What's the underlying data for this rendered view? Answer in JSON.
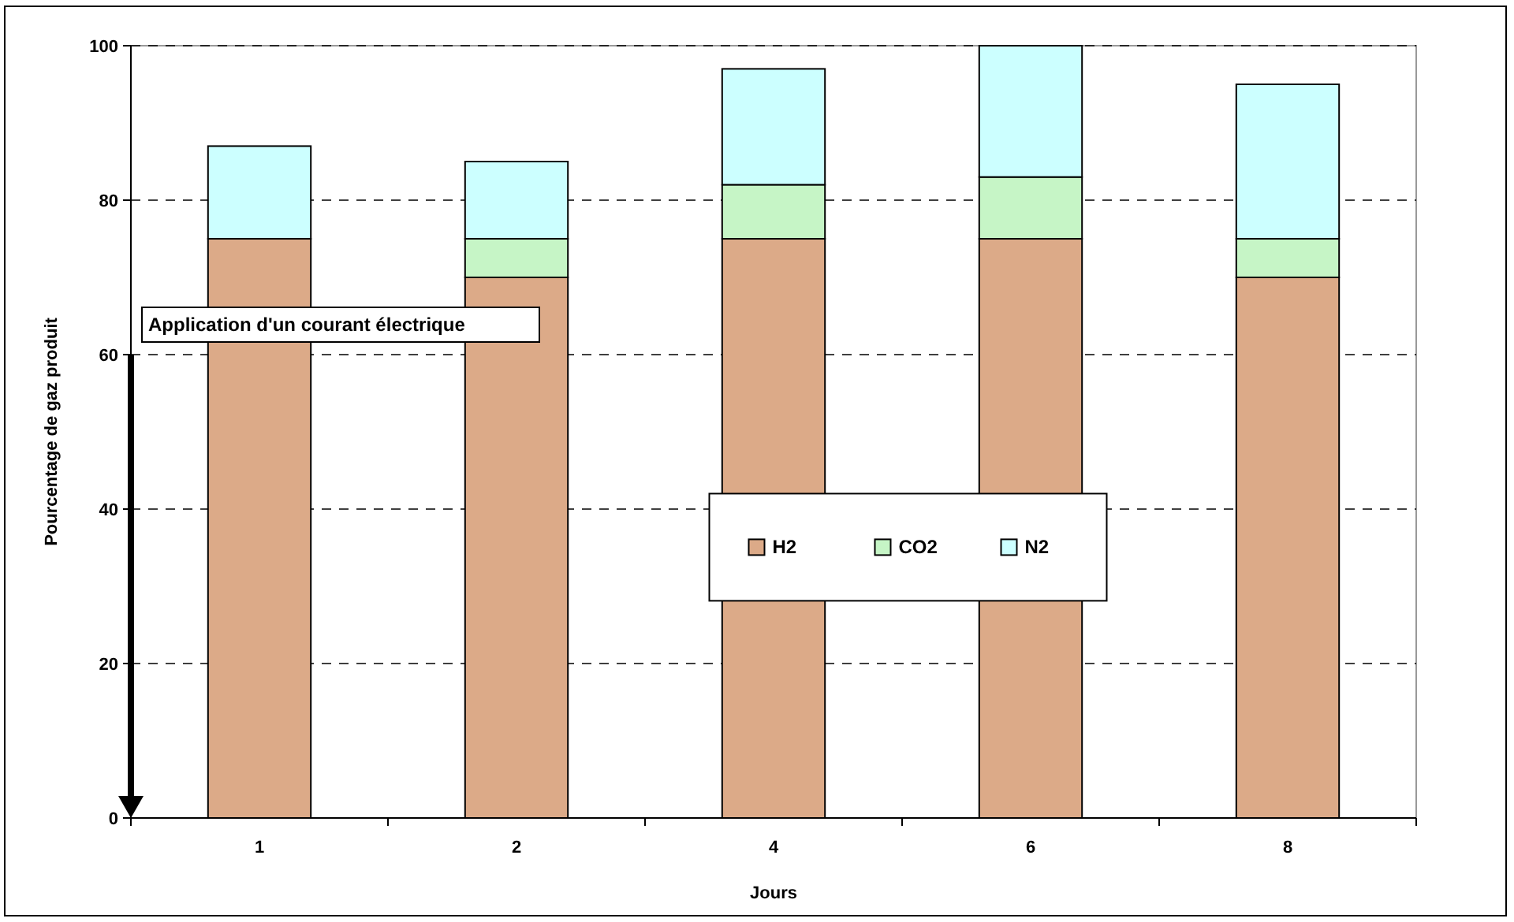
{
  "chart_data": {
    "type": "bar",
    "stacked": true,
    "xlabel": "Jours",
    "ylabel": "Pourcentage de gaz produit",
    "categories": [
      "1",
      "2",
      "4",
      "6",
      "8"
    ],
    "series": [
      {
        "name": "H2",
        "color": "#dcaa88",
        "values": [
          75,
          70,
          75,
          75,
          70
        ]
      },
      {
        "name": "CO2",
        "color": "#c6f5c6",
        "values": [
          0,
          5,
          7,
          8,
          5
        ]
      },
      {
        "name": "N2",
        "color": "#ccffff",
        "values": [
          12,
          10,
          15,
          17,
          20
        ]
      }
    ],
    "ylim": [
      0,
      100
    ],
    "yticks": [
      0,
      20,
      40,
      60,
      80,
      100
    ],
    "grid": "y",
    "legend": "center right",
    "annotations": [
      {
        "text": "Application d'un courant électrique",
        "y": 60
      }
    ]
  }
}
